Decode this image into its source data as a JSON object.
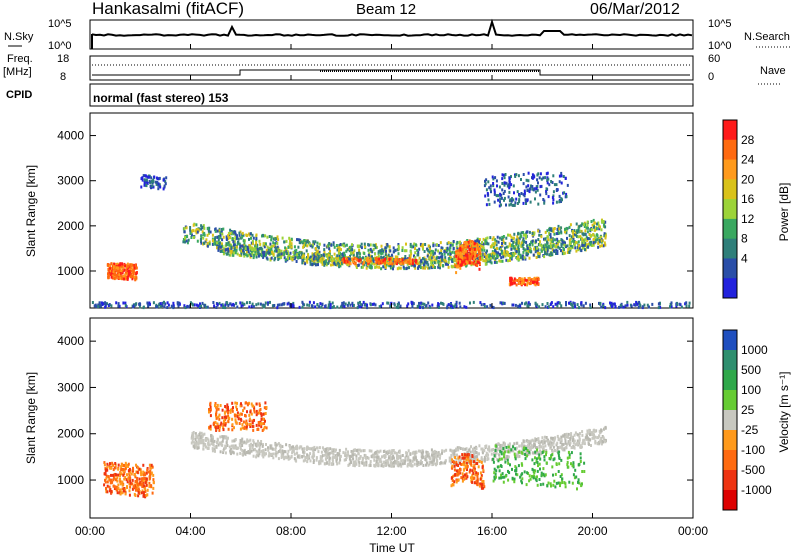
{
  "header": {
    "radar": "Hankasalmi (fitACF)",
    "beam": "Beam 12",
    "date": "06/Mar/2012"
  },
  "top_panels": {
    "nsky_label": "N.Sky",
    "nsky_ticks": [
      "10^5",
      "10^0"
    ],
    "nsearch_label": "N.Search",
    "nsearch_ticks": [
      "10^5",
      "10^0"
    ],
    "freq_label": "Freq.",
    "freq_unit": "[MHz]",
    "freq_ticks": [
      "18",
      "8"
    ],
    "nave_label": "Nave",
    "nave_ticks": [
      "60",
      "0"
    ],
    "cpid_label": "CPID",
    "cpid_text": "normal (fast stereo) 153"
  },
  "chart_data": [
    {
      "type": "heatmap",
      "panel": "power",
      "ylabel": "Slant Range [km]",
      "xlabel": "",
      "x_ticks": [
        "00:00",
        "04:00",
        "08:00",
        "12:00",
        "16:00",
        "20:00",
        "00:00"
      ],
      "xlim_hours": [
        0,
        24
      ],
      "y_ticks": [
        1000,
        2000,
        3000,
        4000
      ],
      "ylim": [
        180,
        4500
      ],
      "colorbar": {
        "label": "Power [dB]",
        "ticks": [
          "28",
          "24",
          "20",
          "16",
          "12",
          "8",
          "4"
        ],
        "colors": [
          "#ff1a1a",
          "#ff6a10",
          "#ff9a1c",
          "#d9c21a",
          "#9cd339",
          "#3aa860",
          "#2f7f7a",
          "#2a4ea8",
          "#2222dd"
        ]
      },
      "features": [
        {
          "name": "main ionospheric band",
          "start": "03:30",
          "end": "20:30",
          "range_km": "1200-2000"
        },
        {
          "name": "early evening patch",
          "start": "00:30",
          "end": "02:00",
          "range_km": "700-1400"
        },
        {
          "name": "late afternoon patch",
          "start": "14:30",
          "end": "15:30",
          "range_km": "800-1600"
        }
      ]
    },
    {
      "type": "heatmap",
      "panel": "velocity",
      "ylabel": "Slant Range [km]",
      "xlabel": "Time UT",
      "x_ticks": [
        "00:00",
        "04:00",
        "08:00",
        "12:00",
        "16:00",
        "20:00",
        "00:00"
      ],
      "xlim_hours": [
        0,
        24
      ],
      "y_ticks": [
        1000,
        2000,
        3000,
        4000
      ],
      "ylim": [
        180,
        4500
      ],
      "colorbar": {
        "label": "Velocity [m s⁻¹]",
        "ticks": [
          "1000",
          "500",
          "100",
          "25",
          "-25",
          "-100",
          "-500",
          "-1000"
        ],
        "colors": [
          "#1f4fbf",
          "#2f8f6f",
          "#2fa84a",
          "#66cc33",
          "#c8c8c0",
          "#ff9a1c",
          "#ff6a10",
          "#ee3311",
          "#dd0000"
        ]
      },
      "features": [
        {
          "name": "ground scatter band",
          "start": "04:00",
          "end": "20:30",
          "range_km": "1300-2100",
          "color_class": "grey (±25)"
        },
        {
          "name": "negative velocity region",
          "start": "00:30",
          "end": "02:30",
          "range_km": "400-1500",
          "color_class": "orange"
        },
        {
          "name": "negative velocity region",
          "start": "04:30",
          "end": "07:00",
          "range_km": "2000-2800",
          "color_class": "orange"
        }
      ]
    }
  ]
}
